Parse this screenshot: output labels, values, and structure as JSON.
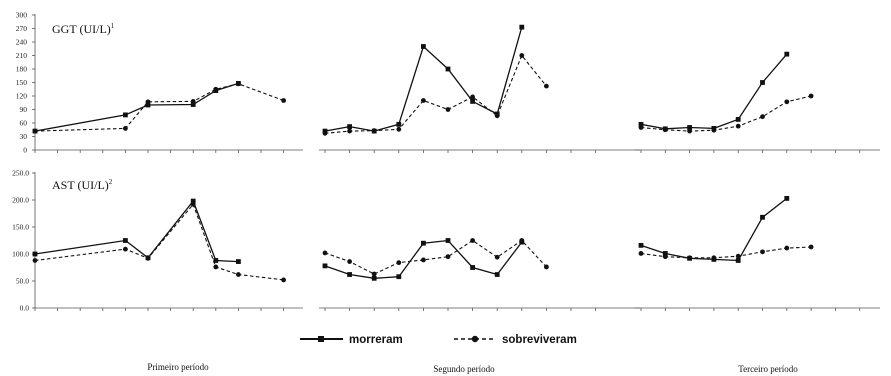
{
  "legend": {
    "entries": [
      {
        "label": "morreram",
        "line_style": "solid",
        "marker": "square"
      },
      {
        "label": "sobreviveram",
        "line_style": "dashed",
        "marker": "circle"
      }
    ]
  },
  "periods": [
    "Primeiro período",
    "Segundo período",
    "Terceiro período"
  ],
  "chart_data": [
    {
      "type": "line",
      "title": "GGT (UI/L)",
      "title_superscript": "1",
      "ylim": [
        0,
        300
      ],
      "yticks": [
        "0",
        "30",
        "60",
        "90",
        "120",
        "150",
        "180",
        "210",
        "240",
        "270",
        "300"
      ],
      "grid": false,
      "panels": [
        {
          "period": "Primeiro período",
          "x": [
            0,
            1,
            2,
            3,
            4,
            5,
            6,
            7,
            8,
            9,
            10,
            11
          ],
          "series": [
            {
              "name": "morreram",
              "points": [
                [
                  0,
                  42
                ],
                [
                  4,
                  78
                ],
                [
                  5,
                  100
                ],
                [
                  7,
                  101
                ],
                [
                  8,
                  132
                ],
                [
                  9,
                  148
                ]
              ]
            },
            {
              "name": "sobreviveram",
              "points": [
                [
                  0,
                  42
                ],
                [
                  4,
                  48
                ],
                [
                  5,
                  107
                ],
                [
                  7,
                  108
                ],
                [
                  8,
                  135
                ],
                [
                  9,
                  147
                ],
                [
                  11,
                  110
                ]
              ]
            }
          ]
        },
        {
          "period": "Segundo período",
          "x": [
            0,
            1,
            2,
            3,
            4,
            5,
            6,
            7,
            8,
            9,
            10,
            11
          ],
          "series": [
            {
              "name": "morreram",
              "points": [
                [
                  0,
                  42
                ],
                [
                  1,
                  52
                ],
                [
                  2,
                  42
                ],
                [
                  3,
                  57
                ],
                [
                  4,
                  230
                ],
                [
                  5,
                  180
                ],
                [
                  6,
                  108
                ],
                [
                  7,
                  80
                ],
                [
                  8,
                  273
                ]
              ]
            },
            {
              "name": "sobreviveram",
              "points": [
                [
                  0,
                  37
                ],
                [
                  1,
                  42
                ],
                [
                  2,
                  43
                ],
                [
                  3,
                  46
                ],
                [
                  4,
                  110
                ],
                [
                  5,
                  90
                ],
                [
                  6,
                  118
                ],
                [
                  7,
                  76
                ],
                [
                  8,
                  210
                ],
                [
                  9,
                  142
                ]
              ]
            }
          ]
        },
        {
          "period": "Terceiro período",
          "x": [
            0,
            1,
            2,
            3,
            4,
            5,
            6,
            7,
            8,
            9
          ],
          "series": [
            {
              "name": "morreram",
              "points": [
                [
                  0,
                  57
                ],
                [
                  1,
                  47
                ],
                [
                  2,
                  50
                ],
                [
                  3,
                  48
                ],
                [
                  4,
                  68
                ],
                [
                  5,
                  150
                ],
                [
                  6,
                  213
                ]
              ]
            },
            {
              "name": "sobreviveram",
              "points": [
                [
                  0,
                  50
                ],
                [
                  1,
                  45
                ],
                [
                  2,
                  42
                ],
                [
                  3,
                  44
                ],
                [
                  4,
                  53
                ],
                [
                  5,
                  74
                ],
                [
                  6,
                  107
                ],
                [
                  7,
                  120
                ]
              ]
            }
          ]
        }
      ]
    },
    {
      "type": "line",
      "title": "AST (UI/L)",
      "title_superscript": "2",
      "ylim": [
        0,
        250
      ],
      "yticks": [
        "0.0",
        "50.0",
        "100.0",
        "150.0",
        "200.0",
        "250.0"
      ],
      "grid": false,
      "panels": [
        {
          "period": "Primeiro período",
          "x": [
            0,
            1,
            2,
            3,
            4,
            5,
            6,
            7,
            8,
            9,
            10,
            11
          ],
          "series": [
            {
              "name": "morreram",
              "points": [
                [
                  0,
                  100
                ],
                [
                  4,
                  125
                ],
                [
                  5,
                  93
                ],
                [
                  7,
                  198
                ],
                [
                  8,
                  88
                ],
                [
                  9,
                  86
                ]
              ]
            },
            {
              "name": "sobreviveram",
              "points": [
                [
                  0,
                  88
                ],
                [
                  4,
                  109
                ],
                [
                  5,
                  92
                ],
                [
                  7,
                  192
                ],
                [
                  8,
                  76
                ],
                [
                  9,
                  62
                ],
                [
                  11,
                  52
                ]
              ]
            }
          ]
        },
        {
          "period": "Segundo período",
          "x": [
            0,
            1,
            2,
            3,
            4,
            5,
            6,
            7,
            8,
            9,
            10,
            11
          ],
          "series": [
            {
              "name": "morreram",
              "points": [
                [
                  0,
                  78
                ],
                [
                  1,
                  62
                ],
                [
                  2,
                  55
                ],
                [
                  3,
                  58
                ],
                [
                  4,
                  120
                ],
                [
                  5,
                  125
                ],
                [
                  6,
                  75
                ],
                [
                  7,
                  62
                ],
                [
                  8,
                  122
                ]
              ]
            },
            {
              "name": "sobreviveram",
              "points": [
                [
                  0,
                  102
                ],
                [
                  1,
                  86
                ],
                [
                  2,
                  63
                ],
                [
                  3,
                  84
                ],
                [
                  4,
                  89
                ],
                [
                  5,
                  95
                ],
                [
                  6,
                  125
                ],
                [
                  7,
                  94
                ],
                [
                  8,
                  125
                ],
                [
                  9,
                  76
                ]
              ]
            }
          ]
        },
        {
          "period": "Terceiro período",
          "x": [
            0,
            1,
            2,
            3,
            4,
            5,
            6,
            7,
            8,
            9
          ],
          "series": [
            {
              "name": "morreram",
              "points": [
                [
                  0,
                  116
                ],
                [
                  1,
                  101
                ],
                [
                  2,
                  92
                ],
                [
                  3,
                  90
                ],
                [
                  4,
                  88
                ],
                [
                  5,
                  168
                ],
                [
                  6,
                  203
                ]
              ]
            },
            {
              "name": "sobreviveram",
              "points": [
                [
                  0,
                  101
                ],
                [
                  1,
                  95
                ],
                [
                  2,
                  93
                ],
                [
                  3,
                  93
                ],
                [
                  4,
                  96
                ],
                [
                  5,
                  104
                ],
                [
                  6,
                  111
                ],
                [
                  7,
                  113
                ]
              ]
            }
          ]
        }
      ]
    }
  ]
}
